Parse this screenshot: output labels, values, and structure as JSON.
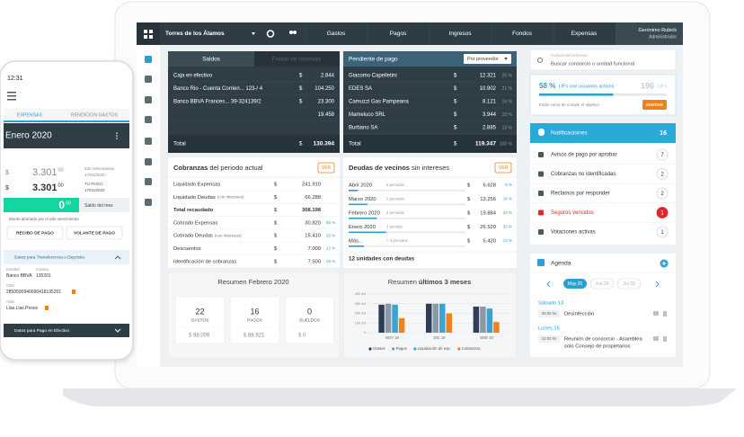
{
  "topbar": {
    "building": "Torres de los Álamos",
    "nav": [
      "Gastos",
      "Pagos",
      "Ingresos",
      "Fondos",
      "Expensas"
    ],
    "user": "Gerónimo Rubick",
    "role": "Administrador"
  },
  "currency": "$",
  "saldos": {
    "tabs": [
      "Saldos",
      "Fondo de reservas"
    ],
    "rows": [
      {
        "label": "Caja en efectivo",
        "amount": "2.844"
      },
      {
        "label": "Banco Rio - Cuenta Corrien... 123-/ 4",
        "amount": "104.250"
      },
      {
        "label": "Banco BBVA Frances... 39-324139/2",
        "amount": "23.300"
      },
      {
        "amount": "19.458"
      }
    ],
    "total": {
      "label": "Total",
      "amount": "130.394"
    }
  },
  "pendiente": {
    "title": "Pendiente de pago",
    "filter": "Por proveedor",
    "rows": [
      {
        "name": "Giacomo Capelletini",
        "amount": "12.321",
        "pct": "25 %"
      },
      {
        "name": "EDES SA",
        "amount": "10.902",
        "pct": "21 %"
      },
      {
        "name": "Camuzzi Gas Pampeana",
        "amount": "8.121",
        "pct": "16 %"
      },
      {
        "name": "Mameluco SRL",
        "amount": "3.944",
        "pct": "15 %"
      },
      {
        "name": "Burbano SA",
        "amount": "2.885",
        "pct": "13 %"
      }
    ],
    "total": {
      "label": "Total",
      "amount": "119.347",
      "pct": "100 %"
    }
  },
  "cobranzas": {
    "title": "Cobranzas",
    "subtitle": "del periodo actual",
    "button": "VER",
    "rows": [
      {
        "label": "Liquidado Expensas",
        "amount": "241.910"
      },
      {
        "label": "Liquidado Deudas",
        "note": "(con intereses)",
        "amount": "66.288"
      },
      {
        "label": "Total recaudado",
        "amount": "308.198"
      },
      {
        "label": "Cobrado Expensas",
        "amount": "30.820",
        "pct": "50 %"
      },
      {
        "label": "Cobrado Deudas",
        "note": "(con intereses)",
        "amount": "15.410",
        "pct": "25 %"
      },
      {
        "label": "Descuentos",
        "amount": "7.000",
        "pct": "12 %"
      },
      {
        "label": "Identificación de cobranzas",
        "amount": "7.500",
        "pct": "15 %"
      }
    ]
  },
  "deudas": {
    "title": "Deudas de vecinos",
    "subtitle": "sin intereses",
    "button": "VER",
    "rows": [
      {
        "label": "Abril 2020",
        "periods": "5 periodos",
        "amount": "6.628",
        "share": 8,
        "share_label": "8 %"
      },
      {
        "label": "Marzo 2020",
        "periods": "2 periodos",
        "amount": "13.256",
        "share": 16,
        "share_label": "16 %"
      },
      {
        "label": "Febrero 2020",
        "periods": "3 periodos",
        "amount": "19.884",
        "share": 24,
        "share_label": "24 %"
      },
      {
        "label": "Enero 2020",
        "periods": "1 periodo",
        "amount": "26.520",
        "share": 32,
        "share_label": "32 %"
      },
      {
        "label": "Más...",
        "periods": "+ 4 periodos",
        "amount": "5.420",
        "share": 13,
        "share_label": "13 %"
      }
    ],
    "footer": "12 unidades con deudas"
  },
  "resumen": {
    "title": "Resumen Febrero 2020",
    "cards": [
      {
        "count": "22",
        "label": "GASTOS",
        "amount": "98.009"
      },
      {
        "count": "16",
        "label": "PAGOS",
        "amount": "88.921"
      },
      {
        "count": "0",
        "label": "SUELDOS",
        "amount": "0"
      }
    ]
  },
  "chart_data": {
    "type": "bar",
    "title": "Resumen",
    "title_bold": "últimos 3 meses",
    "categories": [
      "NOV 19",
      "DIC 19",
      "ENE 20"
    ],
    "series": [
      {
        "name": "Gastos",
        "color": "#2f3e58",
        "values": [
          290000,
          300000,
          270000
        ]
      },
      {
        "name": "Pagos",
        "color": "#8a98a8",
        "values": [
          300000,
          300000,
          270000
        ]
      },
      {
        "name": "Liquidación de exp.",
        "color": "#3aa3d3",
        "values": [
          290000,
          300000,
          250000
        ]
      },
      {
        "name": "Cobranzas",
        "color": "#f0821e",
        "values": [
          150000,
          200000,
          110000
        ]
      }
    ],
    "ylim": [
      0,
      400000
    ],
    "yticks": [
      0,
      {
        "value": 100000,
        "label": "100 mil"
      },
      {
        "value": 200000,
        "label": "200 mil"
      },
      {
        "value": 300000,
        "label": "300 mil"
      },
      {
        "value": 400000,
        "label": "400 mil"
      }
    ],
    "grid": true
  },
  "search": {
    "label": "Consorcio/consorcio",
    "placeholder": "Buscar consorcio o unidad funcional"
  },
  "ufs": {
    "active_pct": 58,
    "active_pct_label": "58 %",
    "text": "UFs con usuarios activos",
    "goal": "196",
    "goal_unit": "UFs",
    "hint": "Estás cerca de cumplir el objetivo",
    "button": "INVITAR"
  },
  "notificaciones": {
    "title": "Notificaciones",
    "count": "16",
    "items": [
      {
        "label": "Avisos de pago por aprobar",
        "count": "7"
      },
      {
        "label": "Cobranzas no identificadas",
        "count": "2"
      },
      {
        "label": "Reclamos por responder",
        "count": "2"
      },
      {
        "label": "Seguros vencidos",
        "count": "1"
      },
      {
        "label": "Votaciones activas",
        "count": "1"
      }
    ]
  },
  "agenda": {
    "title": "Agenda",
    "months": [
      "May 20",
      "Jun 20",
      "Jul 20"
    ],
    "events": [
      {
        "day": "Sábado 13",
        "time": "09:00 hs",
        "title": [
          "Desinfección"
        ]
      },
      {
        "day": "Lunes 15",
        "time": "12:00 hs",
        "title": [
          "Reunión de consorcio - Asamblea",
          "solo Consejo de propietarios"
        ]
      }
    ]
  },
  "phone": {
    "clock": "12:31",
    "tabs": [
      "EXPENSAS",
      "RENDICIÓN GASTOS"
    ],
    "period": "Enero 2020",
    "due": {
      "amount": "3.301",
      "cents": "00",
      "label": "2do Vencimiento",
      "date": "17/01/2020"
    },
    "paid": {
      "amount": "3.301",
      "cents": "00",
      "label": "TU PAGO:",
      "date": "17/01/2020"
    },
    "balance": {
      "amount": "0",
      "cents": "00",
      "label": "Saldo del mes"
    },
    "note": "Monto abonado por el 2do vencimiento",
    "buttons": [
      "RECIBO DE PAGO",
      "VOLANTE DE PAGO"
    ],
    "transfer": {
      "title": "Datos para Transferencia o Depósito",
      "fields": [
        {
          "label": "Entidad",
          "value": "Banco BBVA"
        },
        {
          "label": "Cuenta",
          "value": "135201"
        },
        {
          "label": "CBU",
          "value": "2850590940090418135201"
        },
        {
          "label": "Alias",
          "value": "Llas.Llas.Pesos"
        }
      ]
    },
    "cash": "Datos para Pago en Efectivo"
  }
}
